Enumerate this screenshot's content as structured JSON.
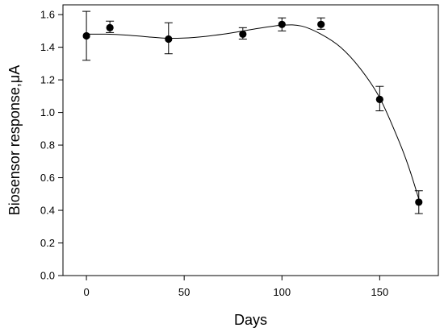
{
  "chart_data": {
    "type": "scatter",
    "title": "",
    "xlabel": "Days",
    "ylabel": "Biosensor response,μA",
    "xlim": [
      -12,
      180
    ],
    "ylim": [
      0,
      1.66
    ],
    "xticks": [
      0,
      50,
      100,
      150
    ],
    "xtick_labels": [
      "0",
      "50",
      "100",
      "150"
    ],
    "yticks": [
      0,
      0.2,
      0.4,
      0.6,
      0.8,
      1.0,
      1.2,
      1.4,
      1.6
    ],
    "ytick_labels": [
      "0.0",
      "0.2",
      "0.4",
      "0.6",
      "0.8",
      "1.0",
      "1.2",
      "1.4",
      "1.6"
    ],
    "grid": false,
    "legend": "none",
    "marker_color": "#000000",
    "line_color": "#000000",
    "series": [
      {
        "points": [
          {
            "x": 0,
            "y": 1.47,
            "err_low": 1.32,
            "err_high": 1.62
          },
          {
            "x": 12,
            "y": 1.52,
            "err_low": 1.49,
            "err_high": 1.56
          },
          {
            "x": 42,
            "y": 1.45,
            "err_low": 1.36,
            "err_high": 1.55
          },
          {
            "x": 80,
            "y": 1.48,
            "err_low": 1.45,
            "err_high": 1.52
          },
          {
            "x": 100,
            "y": 1.54,
            "err_low": 1.5,
            "err_high": 1.58
          },
          {
            "x": 120,
            "y": 1.54,
            "err_low": 1.51,
            "err_high": 1.58
          },
          {
            "x": 150,
            "y": 1.08,
            "err_low": 1.01,
            "err_high": 1.16
          },
          {
            "x": 170,
            "y": 0.45,
            "err_low": 0.38,
            "err_high": 0.52
          }
        ],
        "fit_curve": [
          {
            "x": 0,
            "y": 1.48
          },
          {
            "x": 10,
            "y": 1.48
          },
          {
            "x": 20,
            "y": 1.475
          },
          {
            "x": 30,
            "y": 1.465
          },
          {
            "x": 42,
            "y": 1.455
          },
          {
            "x": 55,
            "y": 1.46
          },
          {
            "x": 70,
            "y": 1.48
          },
          {
            "x": 85,
            "y": 1.51
          },
          {
            "x": 100,
            "y": 1.535
          },
          {
            "x": 110,
            "y": 1.53
          },
          {
            "x": 120,
            "y": 1.48
          },
          {
            "x": 130,
            "y": 1.4
          },
          {
            "x": 140,
            "y": 1.27
          },
          {
            "x": 150,
            "y": 1.09
          },
          {
            "x": 160,
            "y": 0.82
          },
          {
            "x": 165,
            "y": 0.66
          },
          {
            "x": 170,
            "y": 0.47
          }
        ]
      }
    ]
  }
}
